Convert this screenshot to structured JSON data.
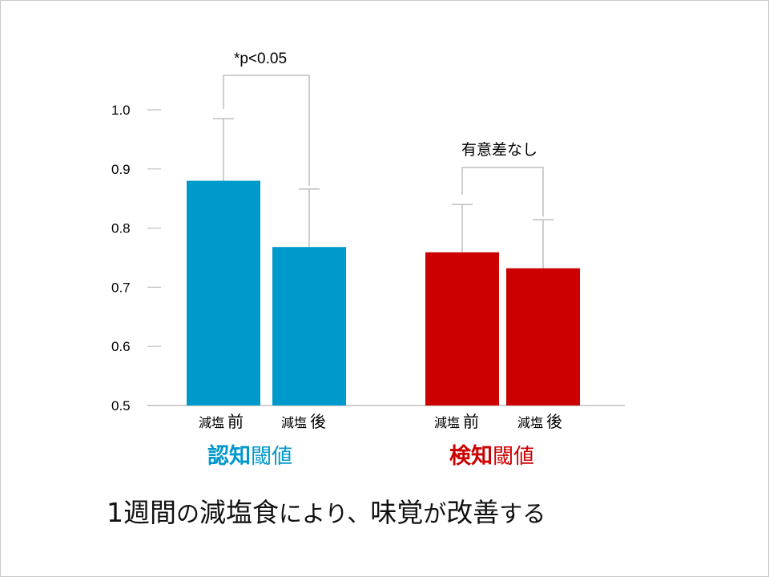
{
  "chart_data": {
    "type": "bar",
    "ylim": [
      0.5,
      1.0
    ],
    "yticks": [
      "0.5",
      "0.6",
      "0.7",
      "0.8",
      "0.9",
      "1.0"
    ],
    "groups": [
      {
        "name_part1": "認知",
        "name_part2": "閾値",
        "color": "#0099cc",
        "categories": [
          {
            "label_part1": "減塩",
            "label_part2": "前",
            "value": 0.88,
            "error_upper": 0.985
          },
          {
            "label_part1": "減塩",
            "label_part2": "後",
            "value": 0.768,
            "error_upper": 0.866
          }
        ],
        "comparison": "*p<0.05"
      },
      {
        "name_part1": "検知",
        "name_part2": "閾値",
        "color": "#cc0000",
        "categories": [
          {
            "label_part1": "減塩",
            "label_part2": "前",
            "value": 0.759,
            "error_upper": 0.84
          },
          {
            "label_part1": "減塩",
            "label_part2": "後",
            "value": 0.732,
            "error_upper": 0.814
          }
        ],
        "comparison": "有意差なし"
      }
    ]
  },
  "caption": {
    "c1": "1",
    "c2": "週間",
    "c3": "の",
    "c4": "減塩食",
    "c5": "により、",
    "c6": "味覚",
    "c7": "が",
    "c8": "改善",
    "c9": "する"
  }
}
